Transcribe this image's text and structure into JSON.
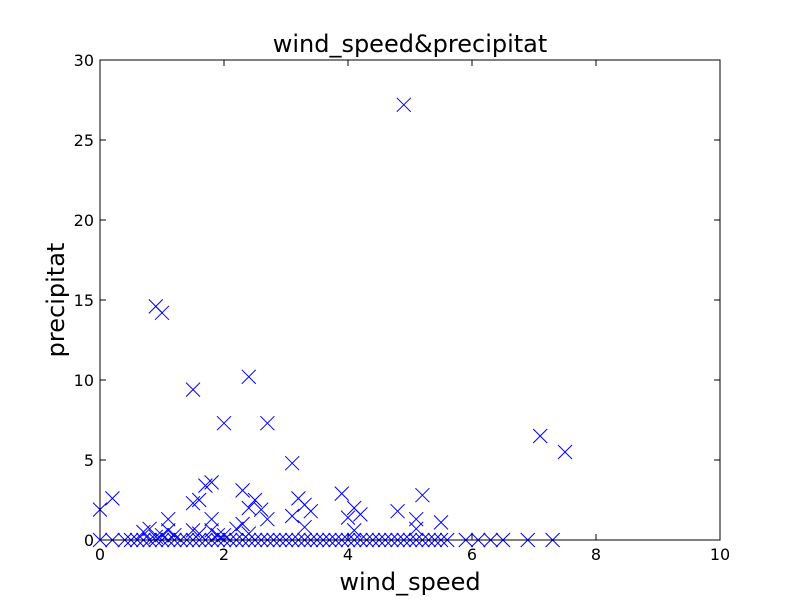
{
  "chart_data": {
    "type": "scatter",
    "title": "wind_speed&precipitat",
    "xlabel": "wind_speed",
    "ylabel": "precipitat",
    "xlim": [
      0,
      10
    ],
    "ylim": [
      0,
      30
    ],
    "x_ticks": [
      "0",
      "2",
      "4",
      "6",
      "8",
      "10"
    ],
    "y_ticks": [
      "0",
      "5",
      "10",
      "15",
      "20",
      "25",
      "30"
    ],
    "grid": false,
    "marker": "x",
    "marker_color": "#0000ff",
    "series": [
      {
        "points": [
          [
            0.0,
            0.0
          ],
          [
            0.0,
            1.9
          ],
          [
            0.2,
            2.6
          ],
          [
            0.2,
            0.0
          ],
          [
            0.4,
            0.0
          ],
          [
            0.5,
            0.0
          ],
          [
            0.6,
            0.0
          ],
          [
            0.7,
            0.5
          ],
          [
            0.7,
            0.0
          ],
          [
            0.8,
            0.7
          ],
          [
            0.8,
            0.0
          ],
          [
            0.9,
            14.6
          ],
          [
            0.9,
            0.2
          ],
          [
            0.9,
            0.0
          ],
          [
            1.0,
            14.2
          ],
          [
            1.0,
            0.3
          ],
          [
            1.0,
            0.0
          ],
          [
            1.1,
            1.3
          ],
          [
            1.1,
            0.6
          ],
          [
            1.1,
            0.0
          ],
          [
            1.2,
            0.3
          ],
          [
            1.2,
            0.0
          ],
          [
            1.3,
            0.0
          ],
          [
            1.4,
            0.0
          ],
          [
            1.5,
            9.4
          ],
          [
            1.5,
            2.3
          ],
          [
            1.5,
            0.6
          ],
          [
            1.5,
            0.0
          ],
          [
            1.6,
            2.5
          ],
          [
            1.6,
            0.4
          ],
          [
            1.6,
            0.0
          ],
          [
            1.7,
            3.4
          ],
          [
            1.7,
            0.0
          ],
          [
            1.8,
            3.6
          ],
          [
            1.8,
            1.3
          ],
          [
            1.8,
            0.6
          ],
          [
            1.8,
            0.0
          ],
          [
            1.9,
            0.3
          ],
          [
            1.9,
            0.0
          ],
          [
            2.0,
            7.3
          ],
          [
            2.0,
            0.3
          ],
          [
            2.0,
            0.0
          ],
          [
            2.1,
            0.0
          ],
          [
            2.2,
            0.7
          ],
          [
            2.2,
            0.0
          ],
          [
            2.3,
            3.1
          ],
          [
            2.3,
            1.0
          ],
          [
            2.3,
            0.0
          ],
          [
            2.4,
            10.2
          ],
          [
            2.4,
            2.0
          ],
          [
            2.4,
            0.4
          ],
          [
            2.4,
            0.0
          ],
          [
            2.5,
            2.5
          ],
          [
            2.5,
            0.0
          ],
          [
            2.6,
            1.9
          ],
          [
            2.6,
            0.0
          ],
          [
            2.7,
            7.3
          ],
          [
            2.7,
            1.3
          ],
          [
            2.7,
            0.0
          ],
          [
            2.8,
            0.0
          ],
          [
            2.9,
            0.0
          ],
          [
            3.0,
            0.0
          ],
          [
            3.1,
            4.8
          ],
          [
            3.1,
            1.5
          ],
          [
            3.1,
            0.0
          ],
          [
            3.2,
            2.6
          ],
          [
            3.2,
            0.0
          ],
          [
            3.3,
            2.2
          ],
          [
            3.3,
            0.8
          ],
          [
            3.3,
            0.0
          ],
          [
            3.4,
            1.8
          ],
          [
            3.4,
            0.0
          ],
          [
            3.5,
            0.0
          ],
          [
            3.6,
            0.0
          ],
          [
            3.7,
            0.0
          ],
          [
            3.8,
            0.0
          ],
          [
            3.9,
            2.9
          ],
          [
            3.9,
            0.0
          ],
          [
            4.0,
            1.4
          ],
          [
            4.0,
            0.0
          ],
          [
            4.1,
            2.0
          ],
          [
            4.1,
            0.6
          ],
          [
            4.1,
            0.0
          ],
          [
            4.2,
            1.6
          ],
          [
            4.2,
            0.0
          ],
          [
            4.3,
            0.0
          ],
          [
            4.4,
            0.0
          ],
          [
            4.5,
            0.0
          ],
          [
            4.6,
            0.0
          ],
          [
            4.7,
            0.0
          ],
          [
            4.8,
            1.8
          ],
          [
            4.8,
            0.0
          ],
          [
            4.9,
            27.2
          ],
          [
            4.9,
            0.0
          ],
          [
            5.0,
            0.0
          ],
          [
            5.1,
            1.3
          ],
          [
            5.1,
            0.7
          ],
          [
            5.1,
            0.0
          ],
          [
            5.2,
            2.8
          ],
          [
            5.2,
            0.0
          ],
          [
            5.3,
            0.0
          ],
          [
            5.4,
            0.0
          ],
          [
            5.5,
            1.1
          ],
          [
            5.5,
            0.0
          ],
          [
            5.6,
            0.0
          ],
          [
            5.9,
            0.0
          ],
          [
            6.1,
            0.0
          ],
          [
            6.3,
            0.0
          ],
          [
            6.5,
            0.0
          ],
          [
            6.9,
            0.0
          ],
          [
            7.1,
            6.5
          ],
          [
            7.3,
            0.0
          ],
          [
            7.5,
            5.5
          ]
        ]
      }
    ]
  }
}
